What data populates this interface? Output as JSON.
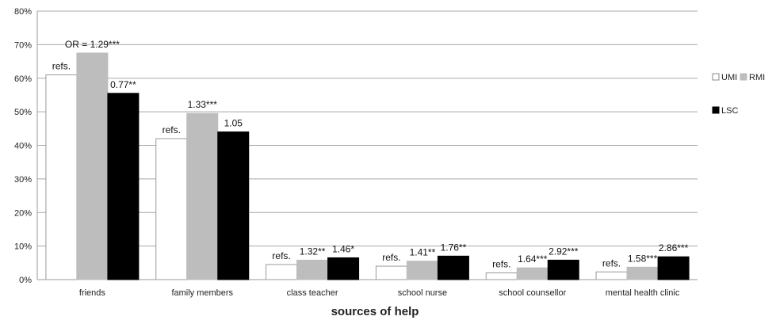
{
  "chart_data": {
    "type": "bar",
    "xlabel": "sources of help",
    "ylabel": "",
    "ylim": [
      0,
      80
    ],
    "yticks": [
      "0%",
      "10%",
      "20%",
      "30%",
      "40%",
      "50%",
      "60%",
      "70%",
      "80%"
    ],
    "grid": true,
    "legend_position": "right",
    "categories": [
      "friends",
      "family members",
      "class teacher",
      "school nurse",
      "school counsellor",
      "mental health clinic"
    ],
    "series": [
      {
        "name": "UMI",
        "color": "#ffffff",
        "values": [
          61,
          42,
          4.5,
          4,
          2,
          2.3
        ],
        "labels": [
          "refs.",
          "refs.",
          "refs.",
          "refs.",
          "refs.",
          "refs."
        ]
      },
      {
        "name": "RMI",
        "color": "#bdbdbd",
        "values": [
          67.5,
          49.5,
          5.8,
          5.5,
          3.5,
          3.7
        ],
        "labels": [
          "OR = 1.29***",
          "1.33***",
          "1.32**",
          "1.41**",
          "1.64***",
          "1.58***"
        ]
      },
      {
        "name": "LSC",
        "color": "#000000",
        "values": [
          55.5,
          44,
          6.5,
          7,
          5.8,
          6.8
        ],
        "labels": [
          "0.77**",
          "1.05",
          "1.46*",
          "1.76**",
          "2.92***",
          "2.86***"
        ]
      }
    ]
  }
}
